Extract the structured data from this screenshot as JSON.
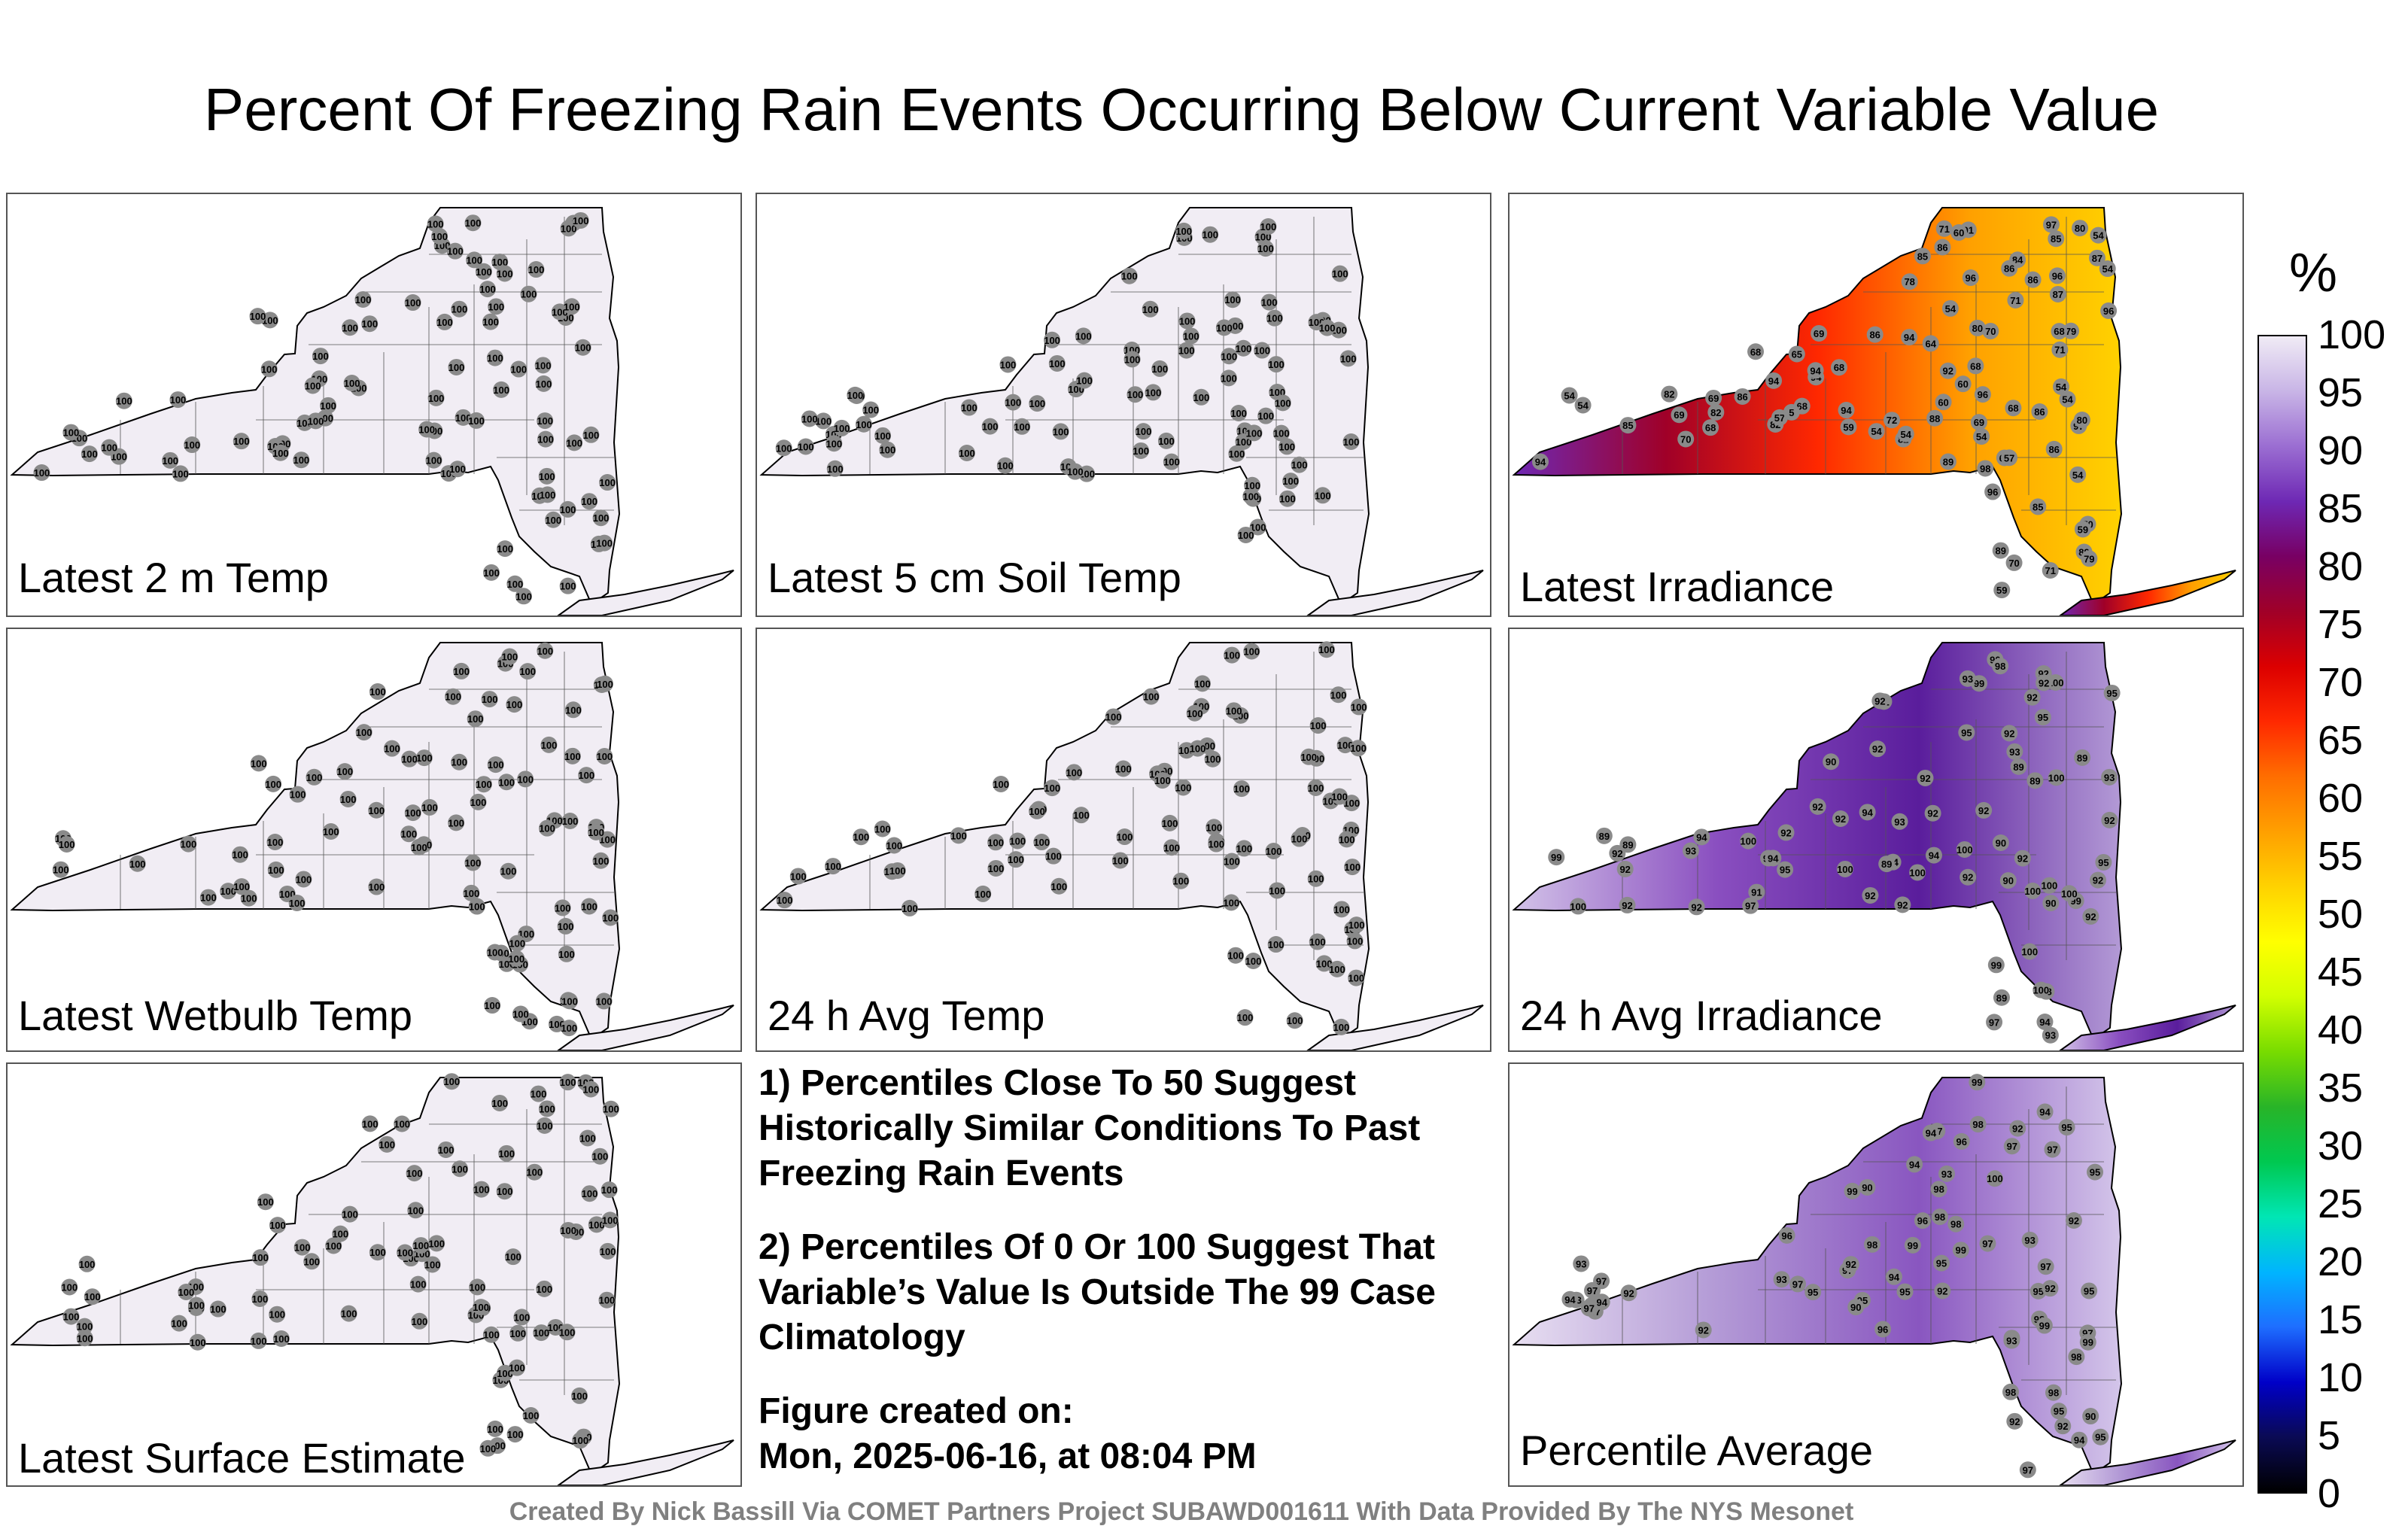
{
  "title": "Percent Of Freezing Rain Events Occurring Below Current Variable Value",
  "panels": [
    {
      "label": "Latest 2 m Temp",
      "fill": "uniform"
    },
    {
      "label": "Latest 5 cm Soil Temp",
      "fill": "uniform"
    },
    {
      "label": "Latest Irradiance",
      "fill": "irradiance"
    },
    {
      "label": "Latest Wetbulb Temp",
      "fill": "uniform"
    },
    {
      "label": "24 h Avg Temp",
      "fill": "uniform"
    },
    {
      "label": "24 h Avg Irradiance",
      "fill": "purple"
    },
    {
      "label": "Latest Surface Estimate",
      "fill": "uniform"
    },
    {
      "label": "Percentile Average",
      "fill": "lightpurple"
    }
  ],
  "notes": {
    "note1": "1) Percentiles Close To 50 Suggest Historically Similar Conditions To Past Freezing Rain Events",
    "note2": "2) Percentiles Of 0 Or 100 Suggest That Variable’s Value Is Outside The 99 Case Climatology",
    "created_label": "Figure created on:",
    "created_date": "Mon, 2025-06-16, at 08:04 PM"
  },
  "credit": "Created By Nick Bassill Via COMET Partners Project SUBAWD001611 With Data Provided By The NYS Mesonet",
  "colorbar": {
    "unit": "%",
    "ticks": [
      "100",
      "95",
      "90",
      "85",
      "80",
      "75",
      "70",
      "65",
      "60",
      "55",
      "50",
      "45",
      "40",
      "35",
      "30",
      "25",
      "20",
      "15",
      "10",
      "5",
      "0"
    ],
    "colors": [
      "#000000",
      "#0a0a55",
      "#0000c8",
      "#1e6eff",
      "#00b4ff",
      "#00e6b4",
      "#00c850",
      "#28b428",
      "#78dc00",
      "#d2ff00",
      "#ffff00",
      "#ffd200",
      "#ffa000",
      "#ff6e00",
      "#ff2800",
      "#dc0000",
      "#a00028",
      "#780064",
      "#6e28b4",
      "#9b6ed2",
      "#c8b4e6",
      "#f0ebf5"
    ]
  },
  "station_values": {
    "uniform": [
      "100",
      "100",
      "100",
      "100",
      "100",
      "100",
      "100",
      "100",
      "100",
      "100",
      "100",
      "100",
      "100",
      "100",
      "100",
      "100",
      "100",
      "100",
      "100",
      "100",
      "100",
      "100",
      "100",
      "100",
      "100",
      "100",
      "100",
      "100",
      "100",
      "100",
      "100",
      "100",
      "100",
      "100",
      "100",
      "100",
      "100",
      "100",
      "100",
      "100",
      "100",
      "100",
      "100",
      "100",
      "100",
      "100",
      "100",
      "100",
      "100",
      "100",
      "100",
      "100",
      "100",
      "100",
      "100",
      "100",
      "100",
      "100",
      "100",
      "100",
      "100",
      "100",
      "100",
      "100",
      "100",
      "100",
      "100",
      "100",
      "100",
      "100",
      "100",
      "100",
      "100",
      "100",
      "100",
      "100",
      "100",
      "100",
      "100",
      "100",
      "100",
      "100",
      "100",
      "100",
      "100",
      "100",
      "100",
      "100"
    ],
    "irradiance": [
      "94",
      "86",
      "82",
      "85",
      "82",
      "84",
      "96",
      "79",
      "86",
      "70",
      "91",
      "86",
      "85",
      "94",
      "68",
      "82",
      "92",
      "86",
      "89",
      "82",
      "96",
      "94",
      "80",
      "69",
      "71",
      "70",
      "97",
      "94",
      "96",
      "87",
      "85",
      "69",
      "80",
      "78",
      "70",
      "65",
      "89",
      "96",
      "86",
      "70",
      "64",
      "69",
      "64",
      "68",
      "98",
      "96",
      "94",
      "71",
      "68",
      "54",
      "59",
      "54",
      "97",
      "94",
      "89",
      "86",
      "85",
      "79",
      "71",
      "72",
      "60",
      "54",
      "59",
      "68",
      "86",
      "71",
      "80",
      "68",
      "57",
      "68",
      "54",
      "54",
      "60",
      "60",
      "88",
      "87",
      "68",
      "54",
      "54",
      "57",
      "59",
      "54",
      "54",
      "54",
      "54",
      "69",
      "5"
    ],
    "purple": [
      "100",
      "100",
      "98",
      "100",
      "100",
      "92",
      "95",
      "95",
      "100",
      "93",
      "93",
      "99",
      "99",
      "92",
      "99",
      "95",
      "100",
      "94",
      "92",
      "94",
      "93",
      "95",
      "93",
      "100",
      "100",
      "95",
      "92",
      "92",
      "92",
      "94",
      "92",
      "99",
      "92",
      "97",
      "100",
      "92",
      "92",
      "92",
      "94",
      "92",
      "92",
      "91",
      "92",
      "92",
      "93",
      "93",
      "92",
      "89",
      "92",
      "90",
      "90",
      "92",
      "92",
      "91",
      "90",
      "92",
      "98",
      "89",
      "92",
      "89",
      "97",
      "92",
      "94",
      "90",
      "89",
      "90",
      "100",
      "92",
      "100",
      "94",
      "89",
      "89",
      "92",
      "89",
      "100"
    ],
    "lightpurple": [
      "99",
      "98",
      "97",
      "97",
      "99",
      "97",
      "97",
      "97",
      "97",
      "99",
      "95",
      "93",
      "96",
      "96",
      "98",
      "98",
      "97",
      "99",
      "95",
      "98",
      "98",
      "95",
      "93",
      "100",
      "98",
      "98",
      "97",
      "95",
      "97",
      "94",
      "99",
      "98",
      "98",
      "98",
      "93",
      "95",
      "94",
      "95",
      "99",
      "95",
      "97",
      "94",
      "94",
      "95",
      "98",
      "97",
      "97",
      "97",
      "94",
      "95",
      "95",
      "92",
      "93",
      "92",
      "94",
      "92",
      "94",
      "92",
      "96",
      "92",
      "93",
      "92",
      "93",
      "90",
      "92",
      "90",
      "92",
      "90",
      "96",
      "92"
    ]
  }
}
